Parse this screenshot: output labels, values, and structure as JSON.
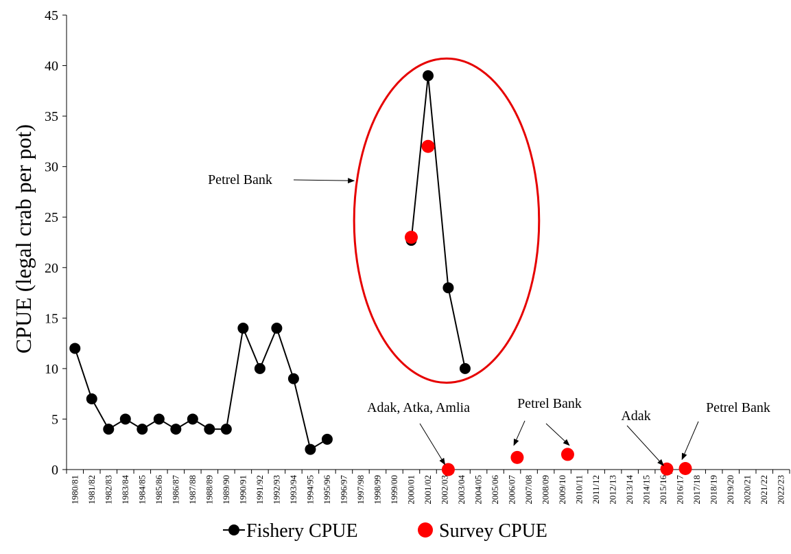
{
  "chart_data": {
    "type": "scatter",
    "title": "",
    "xlabel": "",
    "ylabel": "CPUE (legal crab per pot)",
    "ylim": [
      0,
      45
    ],
    "yticks": [
      0,
      5,
      10,
      15,
      20,
      25,
      30,
      35,
      40,
      45
    ],
    "grid": false,
    "legend_position": "bottom",
    "categories": [
      "1980/81",
      "1981/82",
      "1982/83",
      "1983/84",
      "1984/85",
      "1985/86",
      "1986/87",
      "1987/88",
      "1988/89",
      "1989/90",
      "1990/91",
      "1991/92",
      "1992/93",
      "1993/94",
      "1994/95",
      "1995/96",
      "1996/97",
      "1997/98",
      "1998/99",
      "1999/00",
      "2000/01",
      "2001/02",
      "2002/03",
      "2003/04",
      "2004/05",
      "2005/06",
      "2006/07",
      "2007/08",
      "2008/09",
      "2009/10",
      "2010/11",
      "2011/12",
      "2012/13",
      "2013/14",
      "2014/15",
      "2015/16",
      "2016/17",
      "2017/18",
      "2018/19",
      "2019/20",
      "2020/21",
      "2021/22",
      "2022/23"
    ],
    "series": [
      {
        "name": "Fishery CPUE",
        "color": "#000000",
        "style": "line-with-markers",
        "segments": [
          {
            "points": [
              [
                0,
                12
              ],
              [
                1,
                7
              ],
              [
                2,
                4
              ],
              [
                3,
                5
              ],
              [
                4,
                4
              ],
              [
                5,
                5
              ],
              [
                6,
                4
              ],
              [
                7,
                5
              ],
              [
                8,
                4
              ],
              [
                9,
                4
              ],
              [
                10,
                14
              ],
              [
                11,
                10
              ],
              [
                12,
                14
              ],
              [
                13,
                9
              ],
              [
                14,
                2
              ],
              [
                15,
                3
              ]
            ]
          },
          {
            "points": [
              [
                20.0,
                22.7
              ],
              [
                21.0,
                39
              ],
              [
                22.2,
                18
              ],
              [
                23.2,
                10
              ]
            ]
          }
        ]
      },
      {
        "name": "Survey CPUE",
        "color": "#ff0000",
        "style": "markers",
        "points": [
          [
            20.0,
            23
          ],
          [
            21.0,
            32
          ],
          [
            22.2,
            0
          ],
          [
            26.3,
            1.2
          ],
          [
            29.3,
            1.5
          ],
          [
            35.2,
            0.05
          ],
          [
            36.3,
            0.1
          ]
        ]
      }
    ],
    "annotations": [
      {
        "text": "Petrel Bank",
        "arrow_to": [
          16.6,
          28.6
        ]
      },
      {
        "text": "Adak, Atka, Amlia",
        "arrow_to": [
          22.0,
          0.5
        ]
      },
      {
        "text": "Petrel Bank",
        "arrow_to": [
          26.1,
          2.4
        ]
      },
      {
        "text": "Petrel Bank",
        "arrow_to": [
          29.4,
          2.4
        ]
      },
      {
        "text": "Adak",
        "arrow_to": [
          35.0,
          0.4
        ]
      },
      {
        "text": "Petrel Bank",
        "arrow_to": [
          36.1,
          1.0
        ]
      }
    ],
    "highlight": {
      "shape": "ellipse",
      "color": "#e60000",
      "x_range": [
        16.6,
        27.6
      ],
      "y_range": [
        8.6,
        40.7
      ]
    }
  }
}
